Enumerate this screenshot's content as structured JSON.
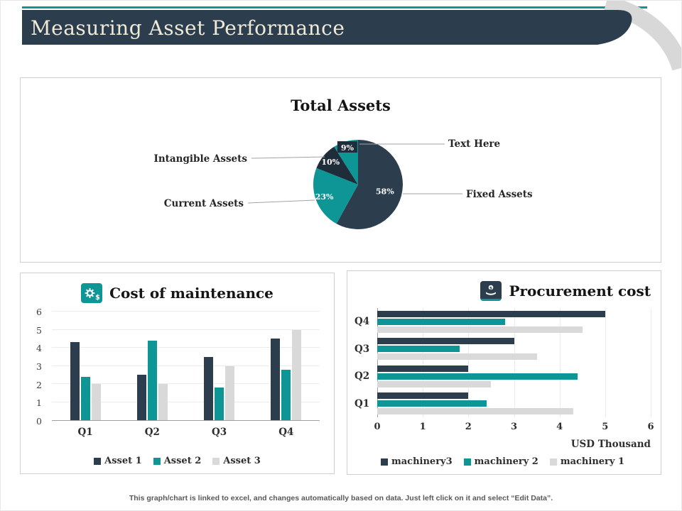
{
  "page": {
    "title": "Measuring Asset Performance",
    "footer": "This graph/chart is linked to excel, and changes automatically based on data. Just left click on it and select “Edit Data”."
  },
  "colors": {
    "dark": "#2c3e4e",
    "darker": "#1f2d3a",
    "teal": "#0e9596",
    "gray": "#d9d9d9",
    "banner": "#2c3e4e",
    "banner_text": "#efe9d8",
    "swoosh": "#d8d8d8"
  },
  "icons": {
    "maintenance": "gear-dollar-icon",
    "procurement": "hand-coin-icon"
  },
  "chart_data": [
    {
      "id": "total-assets",
      "type": "pie",
      "title": "Total Assets",
      "slices": [
        {
          "label": "Fixed Assets",
          "value": 58,
          "pct_label": "58%",
          "color_key": "dark"
        },
        {
          "label": "Current Assets",
          "value": 23,
          "pct_label": "23%",
          "color_key": "teal"
        },
        {
          "label": "Intangible Assets",
          "value": 10,
          "pct_label": "10%",
          "color_key": "darker"
        },
        {
          "label": "Text Here",
          "value": 9,
          "pct_label": "9%",
          "color_key": "teal",
          "label_bg": true
        }
      ]
    },
    {
      "id": "cost-of-maintenance",
      "type": "bar",
      "title": "Cost of maintenance",
      "categories": [
        "Q1",
        "Q2",
        "Q3",
        "Q4"
      ],
      "series": [
        {
          "name": "Asset 1",
          "color_key": "dark",
          "values": [
            4.3,
            2.5,
            3.5,
            4.5
          ]
        },
        {
          "name": "Asset 2",
          "color_key": "teal",
          "values": [
            2.4,
            4.4,
            1.8,
            2.8
          ]
        },
        {
          "name": "Asset 3",
          "color_key": "gray",
          "values": [
            2,
            2,
            3,
            5
          ]
        }
      ],
      "ylim": [
        0,
        6
      ],
      "yticks": [
        0,
        1,
        2,
        3,
        4,
        5,
        6
      ],
      "grid": true,
      "legend_position": "bottom"
    },
    {
      "id": "procurement-cost",
      "type": "hbar",
      "title": "Procurement cost",
      "categories": [
        "Q4",
        "Q3",
        "Q2",
        "Q1"
      ],
      "series": [
        {
          "name": "machinery3",
          "color_key": "dark",
          "values": [
            5,
            3,
            2,
            2
          ]
        },
        {
          "name": "machinery 2",
          "color_key": "teal",
          "values": [
            2.8,
            1.8,
            4.4,
            2.4
          ]
        },
        {
          "name": "machinery 1",
          "color_key": "gray",
          "values": [
            4.5,
            3.5,
            2.5,
            4.3
          ]
        }
      ],
      "xlim": [
        0,
        6
      ],
      "xticks": [
        0,
        1,
        2,
        3,
        4,
        5,
        6
      ],
      "xlabel": "USD Thousand",
      "grid": true,
      "legend_position": "bottom"
    }
  ]
}
